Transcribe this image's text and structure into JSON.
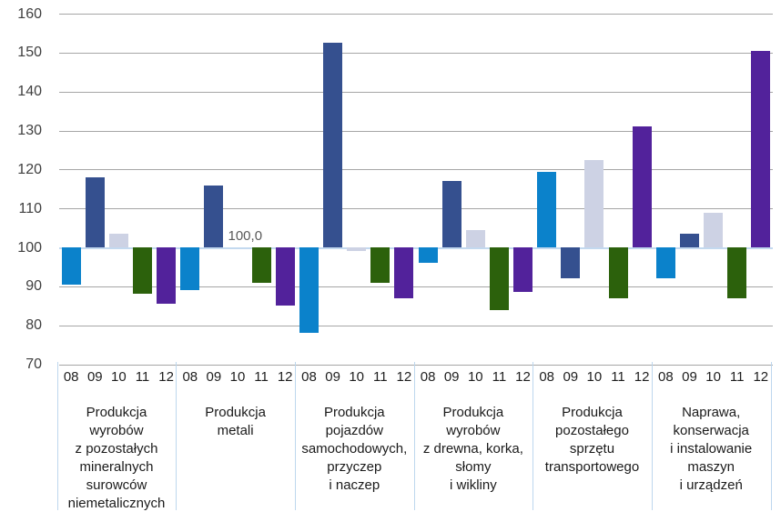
{
  "chart_data": {
    "type": "bar",
    "title": "",
    "xlabel": "",
    "ylabel": "",
    "ylim": [
      70,
      160
    ],
    "yticks": [
      160,
      150,
      140,
      130,
      120,
      110,
      100,
      90,
      80,
      70
    ],
    "grid": true,
    "legend_position": "none",
    "baseline": 100,
    "annotation": {
      "text": "100,0",
      "group_index": 1,
      "year_index": 2
    },
    "year_labels": [
      "08",
      "09",
      "10",
      "11",
      "12"
    ],
    "year_colors": [
      "#0b82cb",
      "#35508f",
      "#cdd2e4",
      "#2c610c",
      "#52229b"
    ],
    "groups": [
      {
        "name": "Produkcja wyrobów z pozostałych mineralnych surowców niemetalicznych",
        "name_lines": [
          "Produkcja",
          "wyrobów",
          "z pozostałych",
          "mineralnych",
          "surowców",
          "niemetalicznych"
        ],
        "values": [
          90.5,
          118.0,
          103.5,
          88.0,
          85.5
        ]
      },
      {
        "name": "Produkcja metali",
        "name_lines": [
          "Produkcja",
          "metali"
        ],
        "values": [
          89.0,
          116.0,
          100.0,
          91.0,
          85.0
        ]
      },
      {
        "name": "Produkcja pojazdów samochodowych, przyczep i naczep",
        "name_lines": [
          "Produkcja",
          "pojazdów",
          "samochodowych,",
          "przyczep",
          "i naczep"
        ],
        "values": [
          78.0,
          152.5,
          99.0,
          91.0,
          87.0
        ]
      },
      {
        "name": "Produkcja wyrobów z drewna, korka, słomy i wikliny",
        "name_lines": [
          "Produkcja",
          "wyrobów",
          "z drewna, korka,",
          "słomy",
          "i wikliny"
        ],
        "values": [
          96.0,
          117.0,
          104.5,
          84.0,
          88.5
        ]
      },
      {
        "name": "Produkcja pozostałego sprzętu transportowego",
        "name_lines": [
          "Produkcja",
          "pozostałego",
          "sprzętu",
          "transportowego"
        ],
        "values": [
          119.5,
          92.0,
          122.5,
          87.0,
          131.0
        ]
      },
      {
        "name": "Naprawa, konserwacja i instalowanie maszyn i urządzeń",
        "name_lines": [
          "Naprawa,",
          "konserwacja",
          "i instalowanie",
          "maszyn",
          "i urządzeń"
        ],
        "values": [
          92.0,
          103.5,
          109.0,
          87.0,
          150.5
        ]
      }
    ],
    "colors": {
      "gridline": "#a6a6a6",
      "baseline_line": "#c3d9ef",
      "separator": "#bdd7ee",
      "axis_text": "#3f3f3f",
      "tick_text": "#1f1f1f",
      "annotation_text": "#595959",
      "background": "#ffffff"
    }
  }
}
